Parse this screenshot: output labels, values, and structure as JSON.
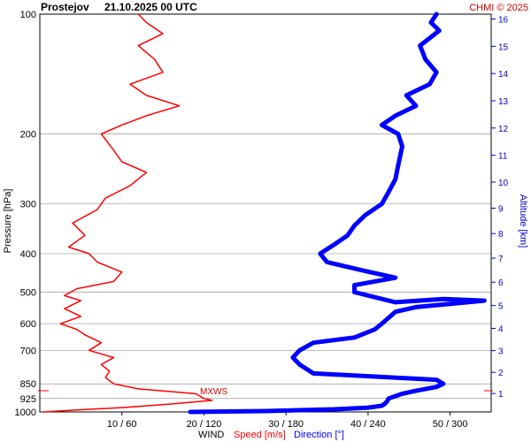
{
  "header": {
    "station": "Prostejov",
    "datetime": "21.10.2025 00 UTC",
    "copyright": "CHMI © 2025"
  },
  "footer": {
    "wind": "WIND",
    "speed": "Speed [m/s]",
    "direction": "Direction [°]"
  },
  "mxws_label": "MXWS",
  "colors": {
    "speed": "#ff0000",
    "direction": "#0000ff",
    "altitude": "#0000cc",
    "grid": "#999999"
  },
  "chart_data": {
    "type": "line",
    "ylabel": "Pressure [hPa]",
    "y2label": "Altitude [km]",
    "y_scale": "log-pressure",
    "ylim": [
      1000,
      100
    ],
    "y_ticks": [
      100,
      200,
      300,
      400,
      500,
      600,
      700,
      850,
      925,
      1000
    ],
    "y_tick_labels": [
      "100",
      "200",
      "300",
      "400",
      "500",
      "600",
      "700",
      "850",
      "925",
      "1000"
    ],
    "altitude_ticks_km": [
      1,
      2,
      3,
      4,
      5,
      6,
      7,
      8,
      9,
      10,
      11,
      12,
      13,
      14,
      15,
      16
    ],
    "x_ticks": [
      "10 / 60",
      "20 / 120",
      "30 / 180",
      "40 / 240",
      "50 / 300"
    ],
    "speed_xlim": [
      0,
      55
    ],
    "direction_xlim": [
      0,
      330
    ],
    "grid": true,
    "series": [
      {
        "name": "Speed [m/s]",
        "unit": "m/s",
        "points": [
          [
            0.5,
            1000
          ],
          [
            4,
            990
          ],
          [
            10,
            975
          ],
          [
            16,
            955
          ],
          [
            21,
            935
          ],
          [
            20,
            925
          ],
          [
            19,
            900
          ],
          [
            12,
            875
          ],
          [
            9,
            850
          ],
          [
            8,
            820
          ],
          [
            8.5,
            790
          ],
          [
            7.5,
            760
          ],
          [
            9,
            730
          ],
          [
            6,
            700
          ],
          [
            7.5,
            670
          ],
          [
            5.5,
            640
          ],
          [
            4.5,
            620
          ],
          [
            2.5,
            600
          ],
          [
            5,
            575
          ],
          [
            3,
            550
          ],
          [
            5,
            525
          ],
          [
            3,
            510
          ],
          [
            4.5,
            490
          ],
          [
            9,
            470
          ],
          [
            10,
            445
          ],
          [
            7,
            420
          ],
          [
            6,
            400
          ],
          [
            3.5,
            385
          ],
          [
            5.5,
            360
          ],
          [
            4,
            335
          ],
          [
            7,
            310
          ],
          [
            8,
            290
          ],
          [
            11,
            270
          ],
          [
            13,
            250
          ],
          [
            10,
            235
          ],
          [
            9,
            220
          ],
          [
            7.5,
            200
          ],
          [
            10,
            190
          ],
          [
            13,
            180
          ],
          [
            17,
            170
          ],
          [
            13,
            160
          ],
          [
            11,
            150
          ],
          [
            15,
            140
          ],
          [
            14,
            130
          ],
          [
            12,
            120
          ],
          [
            15,
            112
          ],
          [
            13,
            105
          ],
          [
            12,
            100
          ]
        ]
      },
      {
        "name": "Direction [°]",
        "unit": "deg",
        "points": [
          [
            110,
            1000
          ],
          [
            165,
            995
          ],
          [
            215,
            985
          ],
          [
            240,
            975
          ],
          [
            250,
            965
          ],
          [
            252,
            955
          ],
          [
            254,
            940
          ],
          [
            255,
            925
          ],
          [
            265,
            900
          ],
          [
            275,
            885
          ],
          [
            290,
            865
          ],
          [
            295,
            850
          ],
          [
            290,
            830
          ],
          [
            200,
            800
          ],
          [
            190,
            760
          ],
          [
            185,
            730
          ],
          [
            190,
            700
          ],
          [
            200,
            670
          ],
          [
            230,
            650
          ],
          [
            245,
            620
          ],
          [
            250,
            600
          ],
          [
            255,
            580
          ],
          [
            260,
            560
          ],
          [
            275,
            545
          ],
          [
            300,
            535
          ],
          [
            325,
            525
          ],
          [
            295,
            520
          ],
          [
            260,
            530
          ],
          [
            230,
            500
          ],
          [
            230,
            480
          ],
          [
            260,
            460
          ],
          [
            235,
            440
          ],
          [
            210,
            420
          ],
          [
            205,
            400
          ],
          [
            215,
            380
          ],
          [
            225,
            360
          ],
          [
            230,
            340
          ],
          [
            238,
            320
          ],
          [
            250,
            300
          ],
          [
            255,
            280
          ],
          [
            260,
            260
          ],
          [
            262,
            240
          ],
          [
            265,
            215
          ],
          [
            262,
            200
          ],
          [
            250,
            190
          ],
          [
            260,
            180
          ],
          [
            275,
            170
          ],
          [
            268,
            160
          ],
          [
            285,
            150
          ],
          [
            290,
            140
          ],
          [
            282,
            130
          ],
          [
            278,
            120
          ],
          [
            292,
            110
          ],
          [
            286,
            105
          ],
          [
            290,
            100
          ]
        ]
      }
    ],
    "annotation": {
      "text": "MXWS",
      "speed": 20,
      "pressure": 875
    }
  }
}
